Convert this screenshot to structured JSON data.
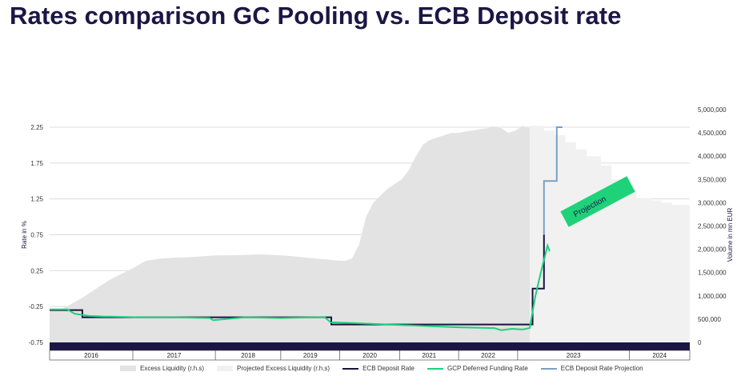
{
  "title": "Rates comparison GC Pooling vs. ECB Deposit rate",
  "colors": {
    "ecb": "#17133d",
    "gcp": "#1ecf7f",
    "projection": "#7b9fc4",
    "excess": "#e3e3e3",
    "projected_excess": "#f1f1f1",
    "year_band": "#1b1745",
    "projection_label_bg": "#1ed27a"
  },
  "chart_data": {
    "type": "line",
    "title": "Rates comparison GC Pooling vs. ECB Deposit rate",
    "xlabel": "",
    "ylabel": "Rate in %",
    "y2label": "Volume in mn EUR",
    "x_range": [
      2015.75,
      2024.75
    ],
    "ylim": [
      -0.75,
      2.25
    ],
    "y2lim": [
      0,
      5000000
    ],
    "y_ticks": [
      "2.25",
      "1.75",
      "1.25",
      "0.75",
      "0.25",
      "-0.25",
      "-0.75"
    ],
    "y_tick_values": [
      2.25,
      1.75,
      1.25,
      0.75,
      0.25,
      -0.25,
      -0.75
    ],
    "y2_ticks": [
      "5,000,000",
      "4,500,000",
      "4,000,000",
      "3,500,000",
      "3,000,000",
      "2,500,000",
      "2,000,000",
      "1,500,000",
      "1,000,000",
      "500,000",
      "0"
    ],
    "y2_tick_values": [
      5000000,
      4500000,
      4000000,
      3500000,
      3000000,
      2500000,
      2000000,
      1500000,
      1000000,
      500000,
      0
    ],
    "years": [
      {
        "label": "2016",
        "start": 2015.75,
        "end": 2016.92
      },
      {
        "label": "2017",
        "start": 2016.92,
        "end": 2018.08
      },
      {
        "label": "2018",
        "start": 2018.08,
        "end": 2019.0
      },
      {
        "label": "2019",
        "start": 2019.0,
        "end": 2019.83
      },
      {
        "label": "2020",
        "start": 2019.83,
        "end": 2020.67
      },
      {
        "label": "2021",
        "start": 2020.67,
        "end": 2021.5
      },
      {
        "label": "2022",
        "start": 2021.5,
        "end": 2022.33
      },
      {
        "label": "2023",
        "start": 2022.33,
        "end": 2023.9
      },
      {
        "label": "2024",
        "start": 2023.9,
        "end": 2024.75
      }
    ],
    "grid": true,
    "legend_position": "bottom",
    "annotations": [
      {
        "text": "Projection"
      }
    ],
    "series": [
      {
        "name": "Excess Liquidity (r.h.s)",
        "type": "area",
        "x": [
          2015.75,
          2015.9,
          2016.0,
          2016.2,
          2016.4,
          2016.6,
          2016.8,
          2016.95,
          2017.1,
          2017.3,
          2017.5,
          2017.7,
          2017.9,
          2018.1,
          2018.3,
          2018.5,
          2018.7,
          2018.9,
          2019.1,
          2019.3,
          2019.5,
          2019.65,
          2019.8,
          2019.9,
          2020.0,
          2020.1,
          2020.2,
          2020.3,
          2020.4,
          2020.5,
          2020.6,
          2020.7,
          2020.8,
          2020.9,
          2021.0,
          2021.1,
          2021.2,
          2021.3,
          2021.4,
          2021.5,
          2021.6,
          2021.7,
          2021.8,
          2021.9,
          2022.0,
          2022.1,
          2022.2,
          2022.3,
          2022.4,
          2022.5
        ],
        "values": [
          680000,
          700000,
          780000,
          950000,
          1150000,
          1350000,
          1500000,
          1620000,
          1750000,
          1800000,
          1820000,
          1830000,
          1850000,
          1870000,
          1870000,
          1880000,
          1890000,
          1880000,
          1860000,
          1830000,
          1800000,
          1780000,
          1760000,
          1750000,
          1800000,
          2100000,
          2700000,
          3000000,
          3150000,
          3300000,
          3400000,
          3500000,
          3700000,
          4000000,
          4250000,
          4350000,
          4400000,
          4450000,
          4500000,
          4500000,
          4530000,
          4550000,
          4580000,
          4600000,
          4620000,
          4600000,
          4500000,
          4550000,
          4650000,
          4600000
        ]
      },
      {
        "name": "Projected Excess Liquidity (r.h.s)",
        "type": "area",
        "step": true,
        "x": [
          2022.5,
          2022.7,
          2022.85,
          2023.0,
          2023.15,
          2023.3,
          2023.5,
          2023.65,
          2023.8,
          2024.0,
          2024.2,
          2024.35,
          2024.5,
          2024.75
        ],
        "values": [
          4650000,
          4550000,
          4450000,
          4300000,
          4150000,
          4000000,
          3800000,
          3500000,
          3300000,
          3100000,
          3050000,
          3000000,
          2950000,
          2950000
        ]
      },
      {
        "name": "ECB Deposit Rate",
        "type": "line",
        "step": true,
        "x": [
          2015.75,
          2016.05,
          2016.21,
          2019.63,
          2019.71,
          2022.45,
          2022.54,
          2022.7
        ],
        "values": [
          -0.3,
          -0.3,
          -0.4,
          -0.4,
          -0.5,
          -0.5,
          0.0,
          0.75
        ]
      },
      {
        "name": "GCP Deferred Funding Rate",
        "type": "line",
        "x": [
          2015.75,
          2016.0,
          2016.1,
          2016.3,
          2016.5,
          2016.6,
          2017.0,
          2017.5,
          2018.0,
          2018.05,
          2018.5,
          2019.0,
          2019.5,
          2019.62,
          2019.7,
          2020.0,
          2020.5,
          2021.0,
          2021.5,
          2022.0,
          2022.1,
          2022.25,
          2022.4,
          2022.5,
          2022.58,
          2022.65,
          2022.7,
          2022.75,
          2022.78
        ],
        "values": [
          -0.29,
          -0.29,
          -0.35,
          -0.38,
          -0.39,
          -0.39,
          -0.4,
          -0.4,
          -0.41,
          -0.44,
          -0.4,
          -0.41,
          -0.4,
          -0.4,
          -0.47,
          -0.48,
          -0.5,
          -0.52,
          -0.54,
          -0.55,
          -0.58,
          -0.56,
          -0.57,
          -0.55,
          -0.1,
          0.2,
          0.4,
          0.6,
          0.52
        ]
      },
      {
        "name": "ECB Deposit Rate Projection",
        "type": "line",
        "step": true,
        "x": [
          2022.7,
          2022.7,
          2022.88,
          2022.88,
          2022.96
        ],
        "values": [
          0.75,
          1.5,
          1.5,
          2.25,
          2.25
        ]
      }
    ]
  }
}
